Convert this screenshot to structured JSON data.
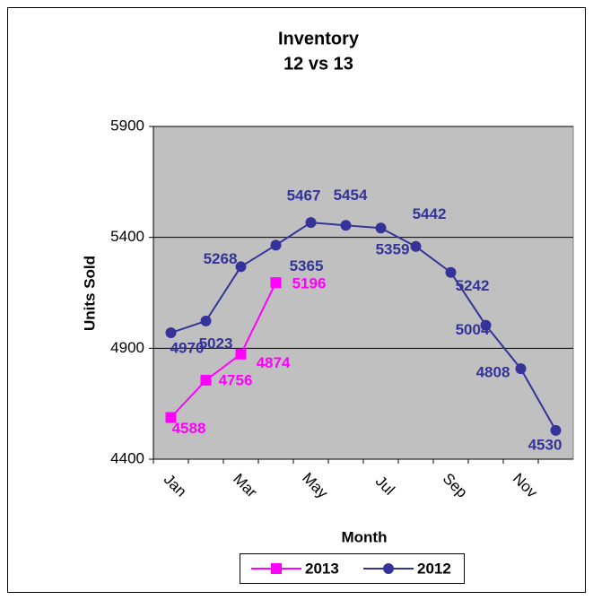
{
  "chart_data": {
    "type": "line",
    "title": "Inventory",
    "subtitle": "12 vs 13",
    "x_label": "Month",
    "y_label": "Units Sold",
    "categories": [
      "Jan",
      null,
      "Mar",
      null,
      "May",
      null,
      "Jul",
      null,
      "Sep",
      null,
      "Nov",
      null
    ],
    "series": [
      {
        "name": "2013",
        "color": "#ff00ff",
        "marker": "square",
        "values": [
          4588,
          4756,
          4874,
          5196,
          null,
          null,
          null,
          null,
          null,
          null,
          null,
          null
        ]
      },
      {
        "name": "2012",
        "color": "#333399",
        "marker": "circle",
        "values": [
          4970,
          5023,
          5268,
          5365,
          5467,
          5454,
          5442,
          5359,
          5242,
          5004,
          4808,
          4530
        ]
      }
    ],
    "ylim": [
      4400,
      5900
    ],
    "yticks": [
      4400,
      4900,
      5400,
      5900
    ],
    "grid": true,
    "legend": "bottom"
  }
}
